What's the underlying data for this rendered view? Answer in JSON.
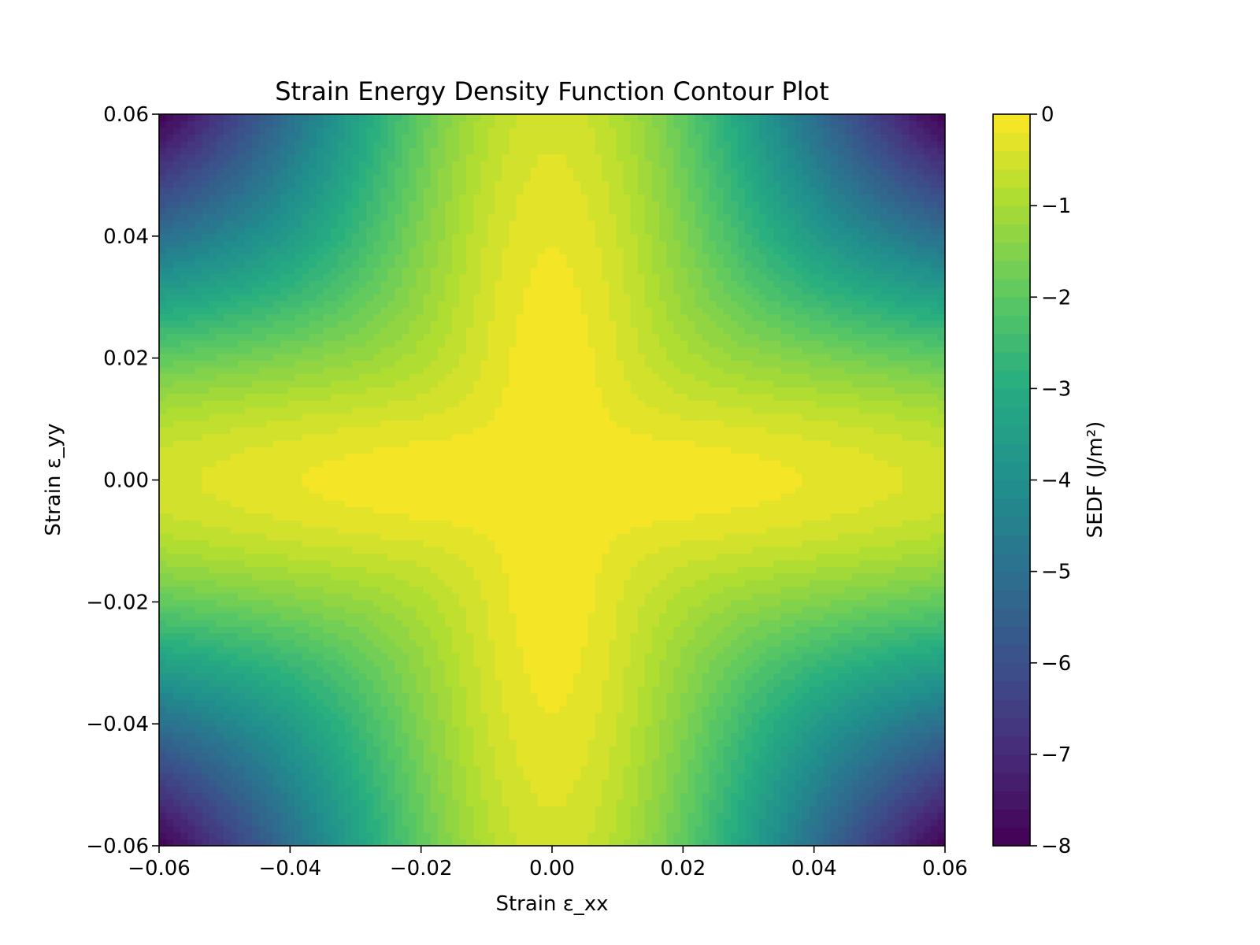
{
  "chart_data": {
    "type": "heatmap",
    "subtype": "filled-contour",
    "title": "Strain Energy Density Function Contour Plot",
    "xlabel": "Strain ε_xx",
    "ylabel": "Strain ε_yy",
    "xlim": [
      -0.06,
      0.06
    ],
    "ylim": [
      -0.06,
      0.06
    ],
    "xticks": [
      -0.06,
      -0.04,
      -0.02,
      0.0,
      0.02,
      0.04,
      0.06
    ],
    "xtick_labels": [
      "−0.06",
      "−0.04",
      "−0.02",
      "0.00",
      "0.02",
      "0.04",
      "0.06"
    ],
    "yticks": [
      -0.06,
      -0.04,
      -0.02,
      0.0,
      0.02,
      0.04,
      0.06
    ],
    "ytick_labels": [
      "−0.06",
      "−0.04",
      "−0.02",
      "0.00",
      "0.02",
      "0.04",
      "0.06"
    ],
    "grid": false,
    "colormap": "viridis",
    "symmetry": "symmetric about ε_xx = 0 and ε_yy = 0",
    "value_range": [
      -8,
      0
    ],
    "sample_values": [
      {
        "x": 0.0,
        "y": 0.0,
        "value": 0.0
      },
      {
        "x": 0.03,
        "y": 0.03,
        "value": -2.0
      },
      {
        "x": 0.06,
        "y": 0.06,
        "value": -8.0
      },
      {
        "x": 0.06,
        "y": 0.0,
        "value": -0.5
      },
      {
        "x": 0.0,
        "y": 0.06,
        "value": -0.8
      }
    ],
    "colorbar": {
      "label": "SEDF (J/m²)",
      "min": -8,
      "max": 0,
      "ticks": [
        0,
        -1,
        -2,
        -3,
        -4,
        -5,
        -6,
        -7,
        -8
      ],
      "tick_labels": [
        "0",
        "−1",
        "−2",
        "−3",
        "−4",
        "−5",
        "−6",
        "−7",
        "−8"
      ],
      "levels": 40
    }
  }
}
